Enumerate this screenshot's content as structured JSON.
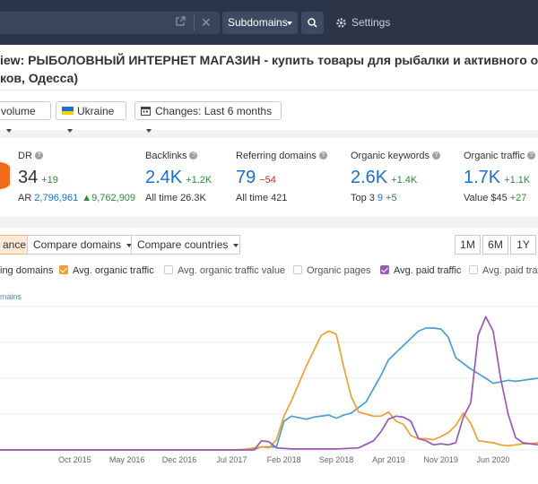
{
  "topbar": {
    "subdomains_label": "Subdomains",
    "settings_label": "Settings"
  },
  "page": {
    "title_line1": "iew: РЫБОЛОВНЫЙ ИНТЕРНЕТ МАГАЗИН - купить товары для рыбалки и активного от",
    "title_line2": "ков, Одесса)"
  },
  "filters": {
    "volume_label": "volume",
    "country_label": "Ukraine",
    "changes_label": "Changes: Last 6 months"
  },
  "metrics": {
    "dr": {
      "name": "DR",
      "value": "34",
      "delta": "+19",
      "sub_label": "AR",
      "sub_value": "2,796,961",
      "sub_delta": "▲9,762,909"
    },
    "backlinks": {
      "name": "Backlinks",
      "value": "2.4K",
      "delta": "+1.2K",
      "sub_label": "All time",
      "sub_value": "26.3K"
    },
    "referring_domains": {
      "name": "Referring domains",
      "value": "79",
      "delta": "−54",
      "sub_label": "All time",
      "sub_value": "421"
    },
    "organic_keywords": {
      "name": "Organic keywords",
      "value": "2.6K",
      "delta": "+1.4K",
      "sub_label": "Top 3",
      "sub_value": "9",
      "sub_delta": "+5"
    },
    "organic_traffic": {
      "name": "Organic traffic",
      "value": "1.7K",
      "delta": "+1.1K",
      "sub_label": "Value",
      "sub_value": "$45",
      "sub_delta": "+27"
    }
  },
  "tabs": {
    "active_label": "ance",
    "compare_domains": "Compare domains",
    "compare_countries": "Compare countries"
  },
  "ranges": [
    "1M",
    "6M",
    "1Y"
  ],
  "legend": {
    "ref_domains": "ing domains",
    "avg_organic_traffic": "Avg. organic traffic",
    "avg_organic_traffic_value": "Avg. organic traffic value",
    "organic_pages": "Organic pages",
    "avg_paid_traffic": "Avg. paid traffic",
    "avg_paid_traffic_value": "Avg. paid traffic v"
  },
  "axis_label": "mains",
  "colors": {
    "referring_domains": "#4a9fd4",
    "organic_traffic": "#f0a030",
    "paid_traffic": "#9b59b6",
    "topbar": "#2b3547",
    "accent_blue": "#1c6fcf"
  },
  "chart_data": {
    "type": "line",
    "x_ticks": [
      "Oct 2015",
      "May 2016",
      "Dec 2016",
      "Jul 2017",
      "Feb 2018",
      "Sep 2018",
      "Apr 2019",
      "Nov 2019",
      "Jun 2020"
    ],
    "x_range": [
      "2014-12",
      "2020-12"
    ],
    "series": [
      {
        "key": "referring_domains",
        "points": [
          [
            "2014-12",
            0
          ],
          [
            "2017-07",
            0
          ],
          [
            "2017-09",
            0.5
          ],
          [
            "2017-10",
            0.5
          ],
          [
            "2017-11",
            3
          ],
          [
            "2018-01",
            3
          ],
          [
            "2018-02",
            28
          ],
          [
            "2018-03",
            33
          ],
          [
            "2018-05",
            30
          ],
          [
            "2018-06",
            32
          ],
          [
            "2018-08",
            34
          ],
          [
            "2018-09",
            31
          ],
          [
            "2018-10",
            34
          ],
          [
            "2018-11",
            36
          ],
          [
            "2019-01",
            47
          ],
          [
            "2019-03",
            73
          ],
          [
            "2019-04",
            88
          ],
          [
            "2019-06",
            102
          ],
          [
            "2019-08",
            116
          ],
          [
            "2019-09",
            119
          ],
          [
            "2019-10",
            119
          ],
          [
            "2019-11",
            118
          ],
          [
            "2019-12",
            110
          ],
          [
            "2020-01",
            90
          ],
          [
            "2020-03",
            79
          ],
          [
            "2020-05",
            70
          ],
          [
            "2020-06",
            65
          ],
          [
            "2020-08",
            68
          ],
          [
            "2020-09",
            67
          ],
          [
            "2020-10",
            68
          ],
          [
            "2020-11",
            69
          ],
          [
            "2020-12",
            70
          ]
        ]
      },
      {
        "key": "organic_traffic",
        "points": [
          [
            "2014-12",
            0
          ],
          [
            "2017-08",
            0
          ],
          [
            "2017-09",
            1
          ],
          [
            "2017-11",
            3
          ],
          [
            "2017-12",
            2
          ],
          [
            "2018-01",
            10
          ],
          [
            "2018-02",
            33
          ],
          [
            "2018-03",
            48
          ],
          [
            "2018-04",
            65
          ],
          [
            "2018-05",
            82
          ],
          [
            "2018-06",
            97
          ],
          [
            "2018-07",
            112
          ],
          [
            "2018-08",
            116
          ],
          [
            "2018-09",
            113
          ],
          [
            "2018-10",
            81
          ],
          [
            "2018-11",
            52
          ],
          [
            "2018-12",
            37
          ],
          [
            "2019-01",
            35
          ],
          [
            "2019-02",
            33
          ],
          [
            "2019-03",
            33
          ],
          [
            "2019-04",
            37
          ],
          [
            "2019-05",
            28
          ],
          [
            "2019-06",
            25
          ],
          [
            "2019-07",
            14
          ],
          [
            "2019-08",
            11
          ],
          [
            "2019-09",
            11
          ],
          [
            "2019-10",
            10
          ],
          [
            "2019-11",
            13
          ],
          [
            "2019-12",
            17
          ],
          [
            "2020-01",
            24
          ],
          [
            "2020-02",
            36
          ],
          [
            "2020-03",
            26
          ],
          [
            "2020-04",
            9
          ],
          [
            "2020-05",
            8
          ],
          [
            "2020-06",
            7
          ],
          [
            "2020-07",
            5
          ],
          [
            "2020-08",
            4
          ],
          [
            "2020-09",
            5
          ],
          [
            "2020-10",
            6
          ],
          [
            "2020-11",
            6
          ],
          [
            "2020-12",
            7
          ]
        ]
      },
      {
        "key": "paid_traffic",
        "points": [
          [
            "2014-12",
            0
          ],
          [
            "2017-10",
            0
          ],
          [
            "2017-11",
            9
          ],
          [
            "2017-12",
            8
          ],
          [
            "2018-01",
            2
          ],
          [
            "2018-03",
            1
          ],
          [
            "2018-06",
            1
          ],
          [
            "2018-09",
            1
          ],
          [
            "2018-12",
            2
          ],
          [
            "2019-02",
            9
          ],
          [
            "2019-03",
            18
          ],
          [
            "2019-04",
            30
          ],
          [
            "2019-05",
            33
          ],
          [
            "2019-06",
            32
          ],
          [
            "2019-07",
            28
          ],
          [
            "2019-08",
            11
          ],
          [
            "2019-09",
            9
          ],
          [
            "2019-10",
            5
          ],
          [
            "2019-11",
            6
          ],
          [
            "2019-12",
            5
          ],
          [
            "2020-01",
            7
          ],
          [
            "2020-02",
            32
          ],
          [
            "2020-03",
            46
          ],
          [
            "2020-04",
            112
          ],
          [
            "2020-05",
            130
          ],
          [
            "2020-06",
            116
          ],
          [
            "2020-07",
            70
          ],
          [
            "2020-08",
            35
          ],
          [
            "2020-09",
            12
          ],
          [
            "2020-10",
            7
          ],
          [
            "2020-11",
            6
          ],
          [
            "2020-12",
            5
          ]
        ]
      }
    ],
    "grid": true,
    "ylim": [
      0,
      140
    ]
  }
}
